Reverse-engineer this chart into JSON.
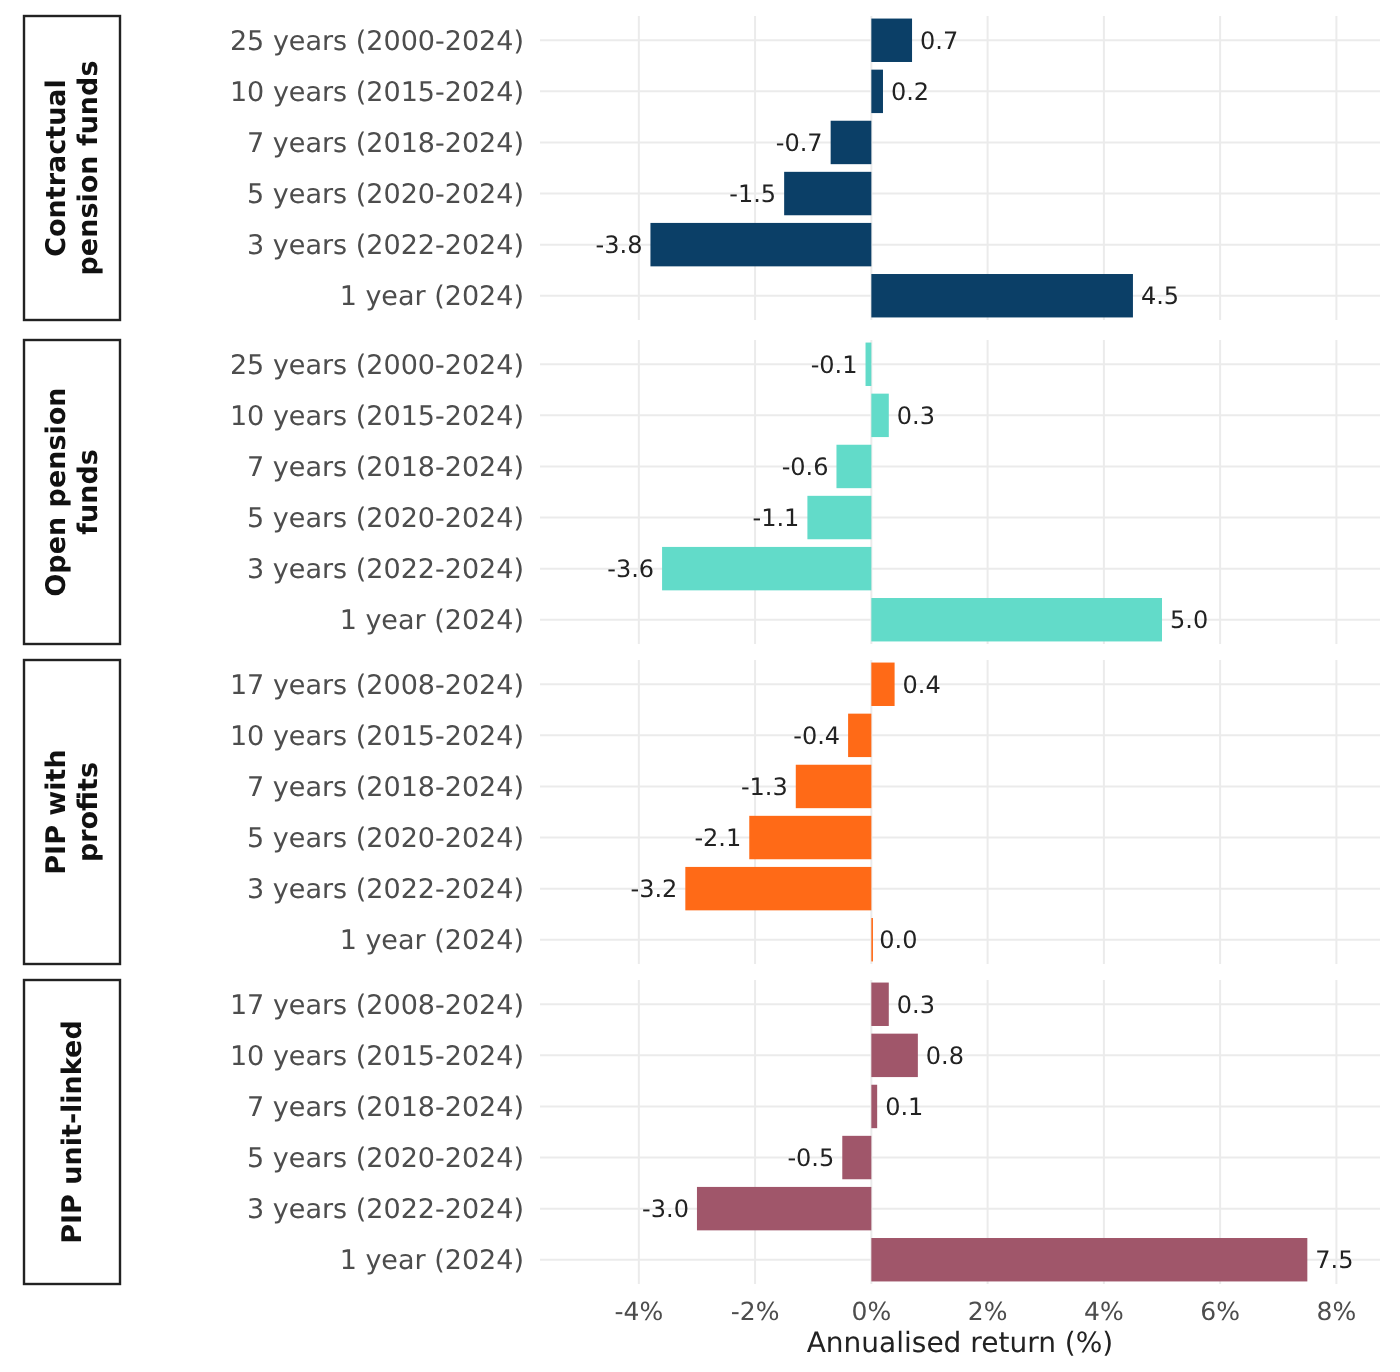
{
  "chart_data": [
    {
      "type": "bar",
      "orientation": "horizontal",
      "title": "Contractual pension funds",
      "categories": [
        "25 years (2000-2024)",
        "10 years (2015-2024)",
        "7 years (2018-2024)",
        "5 years (2020-2024)",
        "3 years (2022-2024)",
        "1 year (2024)"
      ],
      "values": [
        0.7,
        0.2,
        -0.7,
        -1.5,
        -3.8,
        4.5
      ],
      "value_labels": [
        "0.7",
        "0.2",
        "-0.7",
        "-1.5",
        "-3.8",
        "4.5"
      ],
      "color": "#0b3f67",
      "xlim": [
        -5.7,
        8.75
      ],
      "xticks": [
        {
          "value": -4,
          "label": null
        },
        {
          "value": -2,
          "label": null
        },
        {
          "value": 0,
          "label": null
        },
        {
          "value": 2,
          "label": null
        },
        {
          "value": 4,
          "label": null
        },
        {
          "value": 6,
          "label": null
        },
        {
          "value": 8,
          "label": null
        }
      ],
      "grid": true,
      "tick_labels": "y"
    },
    {
      "type": "bar",
      "orientation": "horizontal",
      "title": "Open pension funds",
      "categories": [
        "25 years (2000-2024)",
        "10 years (2015-2024)",
        "7 years (2018-2024)",
        "5 years (2020-2024)",
        "3 years (2022-2024)",
        "1 year (2024)"
      ],
      "values": [
        -0.1,
        0.3,
        -0.6,
        -1.1,
        -3.6,
        5.0
      ],
      "value_labels": [
        "-0.1",
        "0.3",
        "-0.6",
        "-1.1",
        "-3.6",
        "5.0"
      ],
      "color": "#62dbc9",
      "xlim": [
        -5.7,
        8.75
      ],
      "xticks": [
        {
          "value": -4,
          "label": null
        },
        {
          "value": -2,
          "label": null
        },
        {
          "value": 0,
          "label": null
        },
        {
          "value": 2,
          "label": null
        },
        {
          "value": 4,
          "label": null
        },
        {
          "value": 6,
          "label": null
        },
        {
          "value": 8,
          "label": null
        }
      ],
      "grid": true,
      "tick_labels": "y"
    },
    {
      "type": "bar",
      "orientation": "horizontal",
      "title": "PIP with profits",
      "categories": [
        "17 years (2008-2024)",
        "10 years (2015-2024)",
        "7 years (2018-2024)",
        "5 years (2020-2024)",
        "3 years (2022-2024)",
        "1 year (2024)"
      ],
      "values": [
        0.4,
        -0.4,
        -1.3,
        -2.1,
        -3.2,
        0.0
      ],
      "value_labels": [
        "0.4",
        "-0.4",
        "-1.3",
        "-2.1",
        "-3.2",
        "0.0"
      ],
      "color": "#ff6a17",
      "xlim": [
        -5.7,
        8.75
      ],
      "xticks": [
        {
          "value": -4,
          "label": null
        },
        {
          "value": -2,
          "label": null
        },
        {
          "value": 0,
          "label": null
        },
        {
          "value": 2,
          "label": null
        },
        {
          "value": 4,
          "label": null
        },
        {
          "value": 6,
          "label": null
        },
        {
          "value": 8,
          "label": null
        }
      ],
      "grid": true,
      "tick_labels": "y"
    },
    {
      "type": "bar",
      "orientation": "horizontal",
      "title": "PIP unit-linked",
      "xlabel": "Annualised return (%)",
      "categories": [
        "17 years (2008-2024)",
        "10 years (2015-2024)",
        "7 years (2018-2024)",
        "5 years (2020-2024)",
        "3 years (2022-2024)",
        "1 year (2024)"
      ],
      "values": [
        0.3,
        0.8,
        0.1,
        -0.5,
        -3.0,
        7.5
      ],
      "value_labels": [
        "0.3",
        "0.8",
        "0.1",
        "-0.5",
        "-3.0",
        "7.5"
      ],
      "color": "#a0566a",
      "xlim": [
        -5.7,
        8.75
      ],
      "xticks": [
        {
          "value": -4,
          "label": "-4%"
        },
        {
          "value": -2,
          "label": "-2%"
        },
        {
          "value": 0,
          "label": "0%"
        },
        {
          "value": 2,
          "label": "2%"
        },
        {
          "value": 4,
          "label": "4%"
        },
        {
          "value": 6,
          "label": "6%"
        },
        {
          "value": 8,
          "label": "8%"
        }
      ],
      "grid": true
    }
  ]
}
